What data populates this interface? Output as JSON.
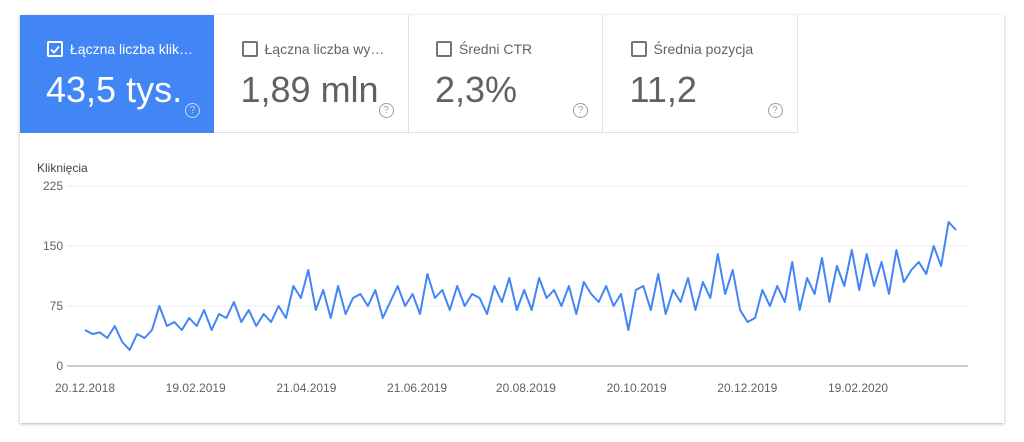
{
  "tiles": [
    {
      "label": "Łączna liczba klik…",
      "value": "43,5 tys.",
      "selected": true
    },
    {
      "label": "Łączna liczba wy…",
      "value": "1,89 mln",
      "selected": false
    },
    {
      "label": "Średni CTR",
      "value": "2,3%",
      "selected": false
    },
    {
      "label": "Średnia pozycja",
      "value": "11,2",
      "selected": false
    }
  ],
  "help_glyph": "?",
  "colors": {
    "accent": "#4285f4",
    "line": "#4285f4"
  },
  "chart_data": {
    "type": "line",
    "ylabel": "Kliknięcia",
    "ylim": [
      0,
      225
    ],
    "yticks": [
      0,
      75,
      150,
      225
    ],
    "xticks": [
      "20.12.2018",
      "19.02.2019",
      "21.04.2019",
      "21.06.2019",
      "20.08.2019",
      "20.10.2019",
      "20.12.2019",
      "19.02.2020"
    ],
    "x_range": [
      "20.12.2018",
      "13.04.2020"
    ],
    "grid": true,
    "series": [
      {
        "values": [
          45,
          40,
          42,
          35,
          50,
          30,
          20,
          40,
          35,
          45,
          75,
          50,
          55,
          45,
          60,
          50,
          70,
          45,
          65,
          60,
          80,
          55,
          70,
          50,
          65,
          55,
          75,
          60,
          100,
          85,
          120,
          70,
          95,
          60,
          100,
          65,
          85,
          90,
          75,
          95,
          60,
          80,
          100,
          75,
          90,
          65,
          115,
          85,
          95,
          70,
          100,
          75,
          90,
          85,
          65,
          100,
          80,
          110,
          70,
          95,
          70,
          110,
          85,
          95,
          75,
          100,
          65,
          105,
          90,
          80,
          100,
          75,
          90,
          45,
          95,
          100,
          70,
          115,
          65,
          95,
          80,
          110,
          70,
          105,
          85,
          140,
          90,
          120,
          70,
          55,
          60,
          95,
          75,
          100,
          80,
          130,
          70,
          110,
          90,
          135,
          80,
          125,
          100,
          145,
          95,
          140,
          100,
          130,
          90,
          145,
          105,
          120,
          130,
          115,
          150,
          125,
          180,
          170
        ]
      }
    ]
  }
}
